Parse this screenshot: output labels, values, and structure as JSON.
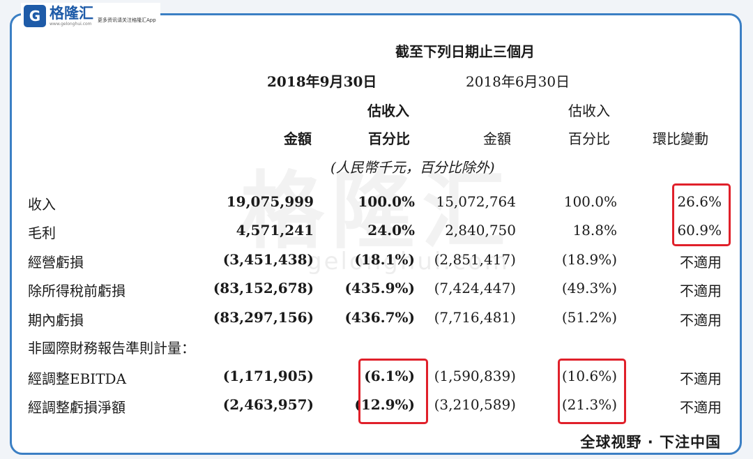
{
  "brand": {
    "logo_letter": "G",
    "name": "格隆汇",
    "url": "www.gelonghui.com",
    "slogan": "更多资讯请关注格隆汇App"
  },
  "watermark": {
    "main": "格隆汇",
    "sub": "gelonghui.com"
  },
  "table": {
    "period_header": "截至下列日期止三個月",
    "date1": "2018年9月30日",
    "date2": "2018年6月30日",
    "est_revenue": "估收入",
    "col_amount": "金額",
    "col_pct": "百分比",
    "col_qoq": "環比變動",
    "unit_note": "(人民幣千元，百分比除外)",
    "non_ifrs_heading": "非國際財務報告準則計量：",
    "rows": [
      {
        "label": "收入",
        "a1": "19,075,999",
        "p1": "100.0%",
        "a2": "15,072,764",
        "p2": "100.0%",
        "qoq": "26.6%"
      },
      {
        "label": "毛利",
        "a1": "4,571,241",
        "p1": "24.0%",
        "a2": "2,840,750",
        "p2": "18.8%",
        "qoq": "60.9%"
      },
      {
        "label": "經營虧損",
        "a1": "(3,451,438)",
        "p1": "(18.1%)",
        "a2": "(2,851,417)",
        "p2": "(18.9%)",
        "qoq": "不適用"
      },
      {
        "label": "除所得稅前虧損",
        "a1": "(83,152,678)",
        "p1": "(435.9%)",
        "a2": "(7,424,447)",
        "p2": "(49.3%)",
        "qoq": "不適用"
      },
      {
        "label": "期內虧損",
        "a1": "(83,297,156)",
        "p1": "(436.7%)",
        "a2": "(7,716,481)",
        "p2": "(51.2%)",
        "qoq": "不適用"
      },
      {
        "label": "經調整EBITDA",
        "a1": "(1,171,905)",
        "p1": "(6.1%)",
        "a2": "(1,590,839)",
        "p2": "(10.6%)",
        "qoq": "不適用"
      },
      {
        "label": "經調整虧損淨額",
        "a1": "(2,463,957)",
        "p1": "(12.9%)",
        "a2": "(3,210,589)",
        "p2": "(21.3%)",
        "qoq": "不適用"
      }
    ]
  },
  "footer": {
    "slogan": "全球视野 · 下注中国"
  },
  "colors": {
    "frame": "#3b7fc4",
    "highlight": "#e0202a",
    "brand": "#1e5ba8"
  }
}
